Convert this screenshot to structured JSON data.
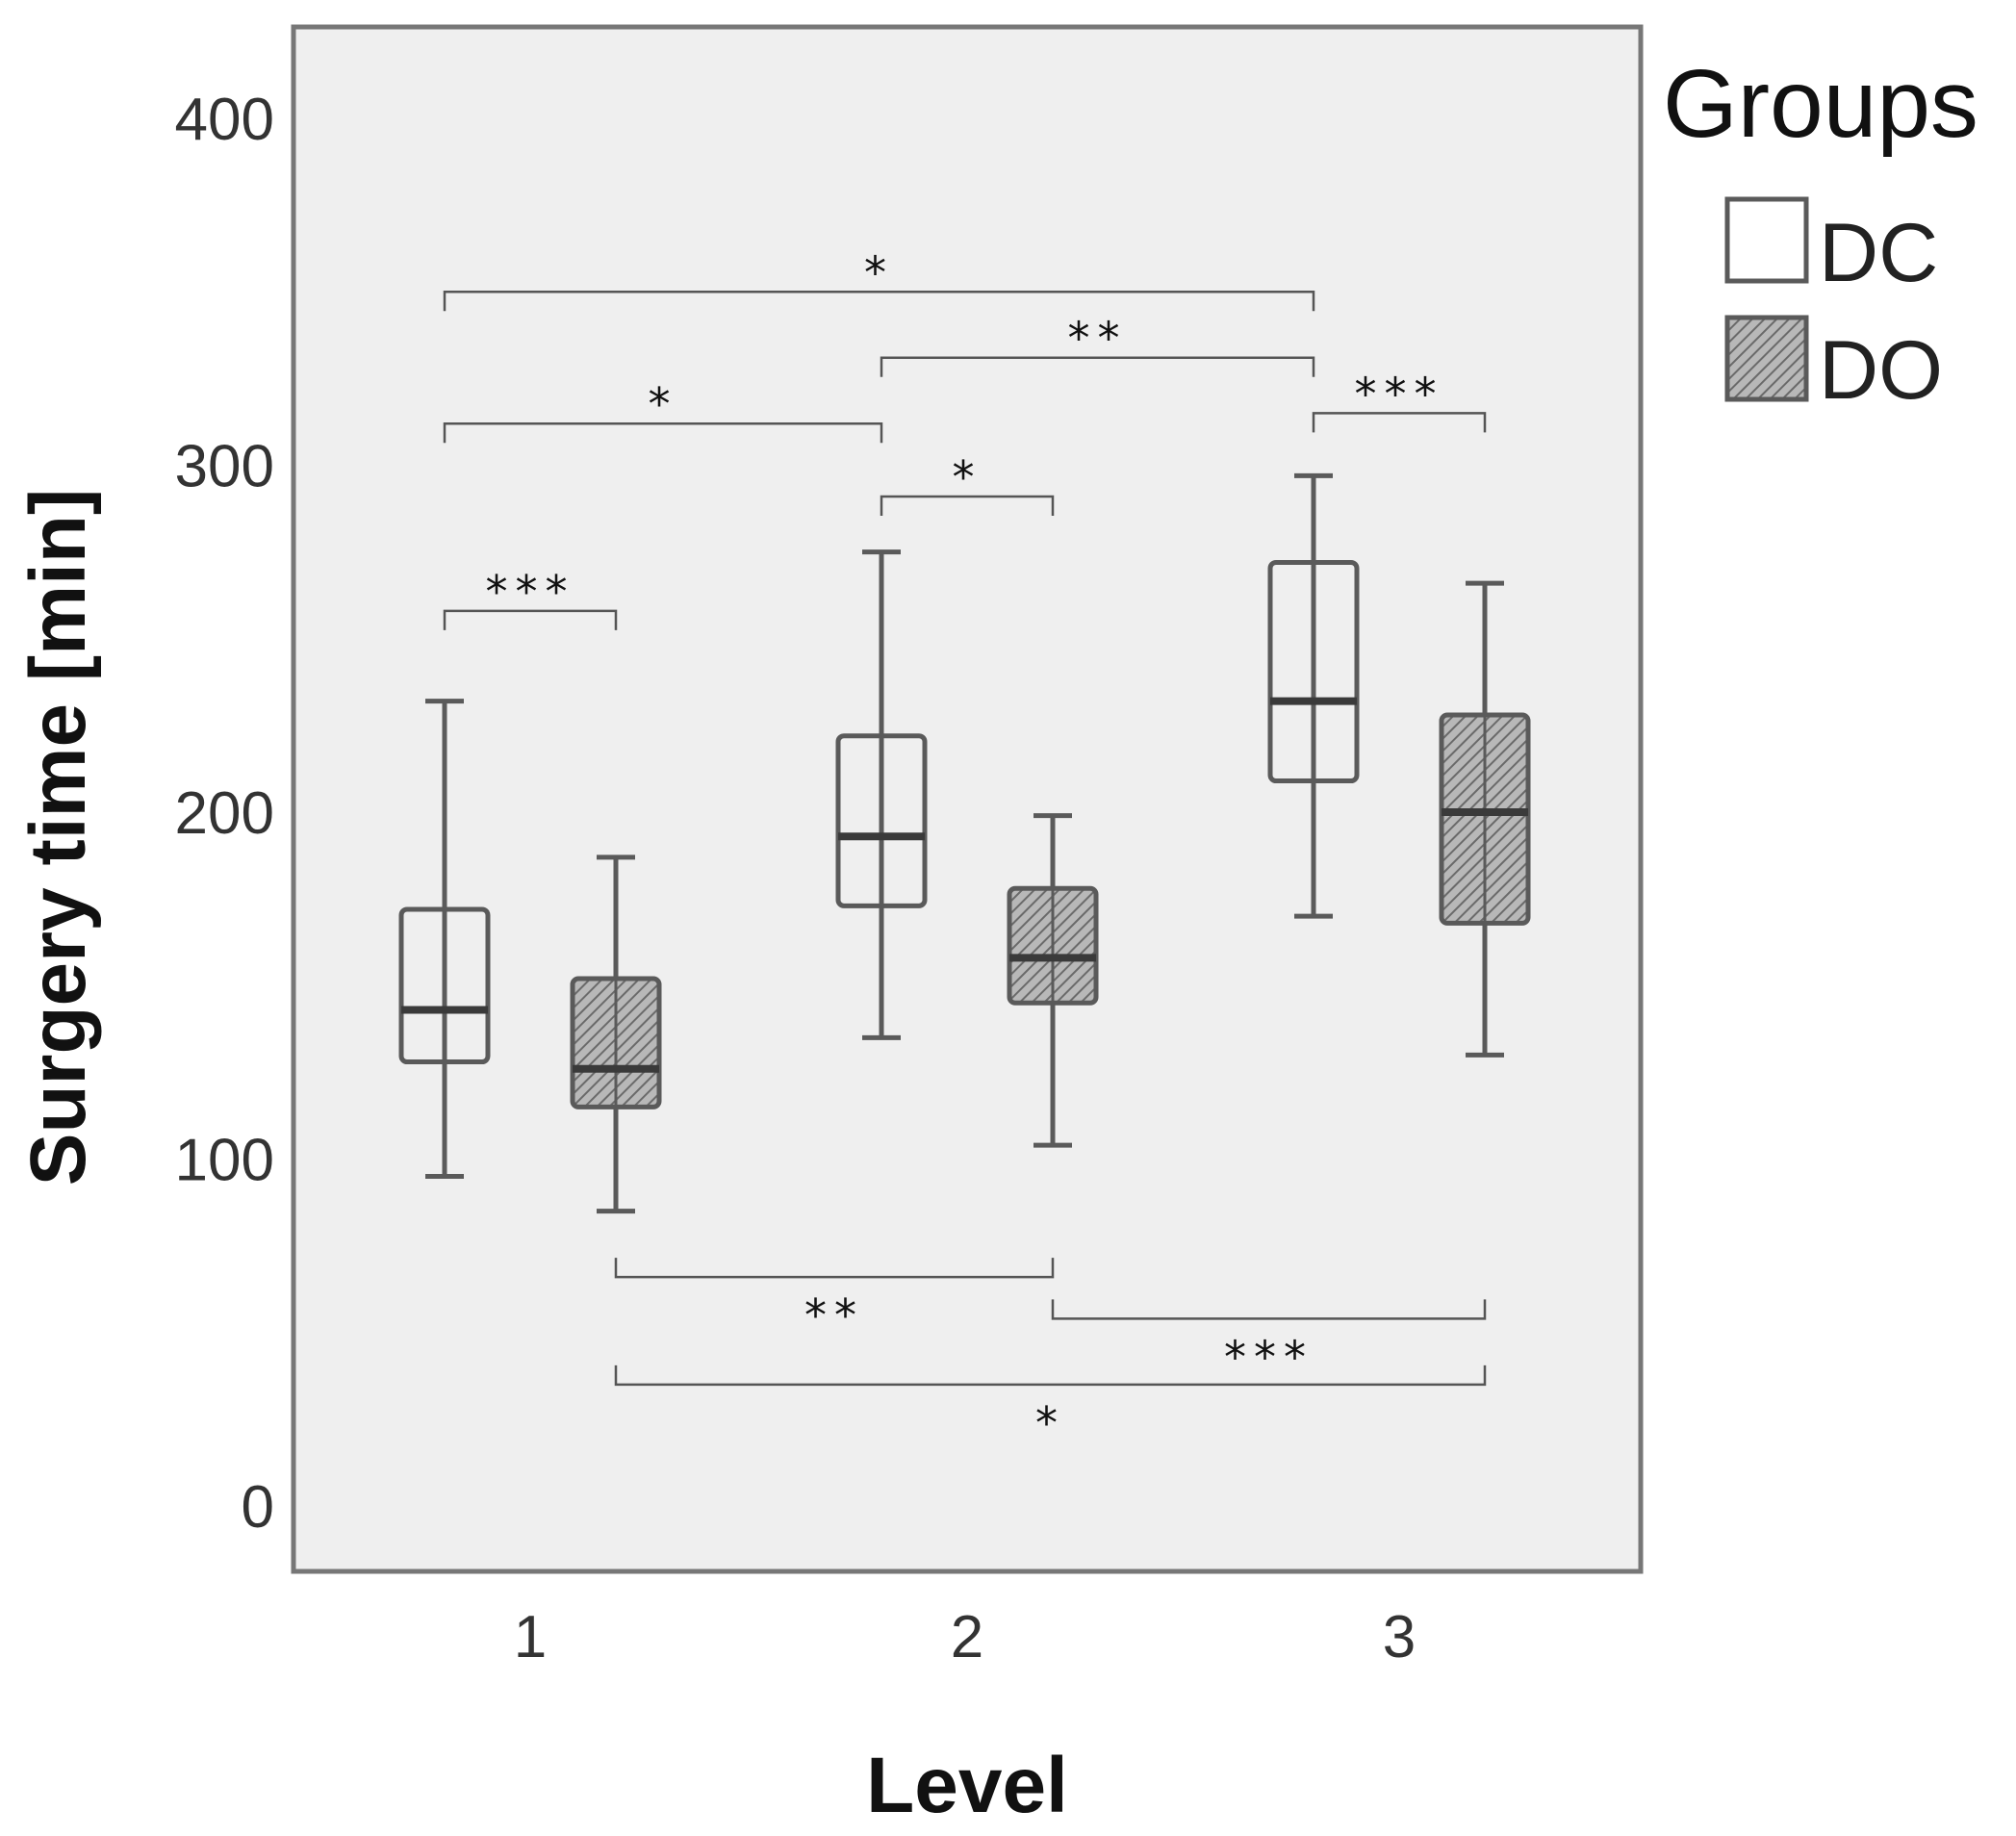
{
  "chart_data": {
    "type": "box",
    "title": "",
    "xlabel": "Level",
    "ylabel": "Surgery time [min]",
    "ylim": [
      0,
      420
    ],
    "yticks": [
      "0",
      "100",
      "200",
      "300",
      "400"
    ],
    "categories": [
      "1",
      "2",
      "3"
    ],
    "legend": {
      "title": "Groups",
      "placement": "right"
    },
    "series": [
      {
        "name": "DC",
        "pattern": "open",
        "boxes": [
          {
            "category": "1",
            "whisker_low": 95,
            "q1": 128,
            "median": 143,
            "q3": 172,
            "whisker_high": 232
          },
          {
            "category": "2",
            "whisker_low": 135,
            "q1": 173,
            "median": 193,
            "q3": 222,
            "whisker_high": 275
          },
          {
            "category": "3",
            "whisker_low": 170,
            "q1": 209,
            "median": 232,
            "q3": 272,
            "whisker_high": 297
          }
        ]
      },
      {
        "name": "DO",
        "pattern": "hatched",
        "boxes": [
          {
            "category": "1",
            "whisker_low": 85,
            "q1": 115,
            "median": 126,
            "q3": 152,
            "whisker_high": 187
          },
          {
            "category": "2",
            "whisker_low": 104,
            "q1": 145,
            "median": 158,
            "q3": 178,
            "whisker_high": 199
          },
          {
            "category": "3",
            "whisker_low": 130,
            "q1": 168,
            "median": 200,
            "q3": 228,
            "whisker_high": 266
          }
        ]
      }
    ],
    "significance": [
      {
        "from": {
          "category": "1",
          "series": "DC"
        },
        "to": {
          "category": "3",
          "series": "DC"
        },
        "label": "*",
        "y": 350,
        "side": "above"
      },
      {
        "from": {
          "category": "2",
          "series": "DC"
        },
        "to": {
          "category": "3",
          "series": "DC"
        },
        "label": "**",
        "y": 331,
        "side": "above"
      },
      {
        "from": {
          "category": "1",
          "series": "DC"
        },
        "to": {
          "category": "2",
          "series": "DC"
        },
        "label": "*",
        "y": 312,
        "side": "above"
      },
      {
        "from": {
          "category": "3",
          "series": "DC"
        },
        "to": {
          "category": "3",
          "series": "DO"
        },
        "label": "***",
        "y": 315,
        "side": "above"
      },
      {
        "from": {
          "category": "2",
          "series": "DC"
        },
        "to": {
          "category": "2",
          "series": "DO"
        },
        "label": "*",
        "y": 291,
        "side": "above"
      },
      {
        "from": {
          "category": "1",
          "series": "DC"
        },
        "to": {
          "category": "1",
          "series": "DO"
        },
        "label": "***",
        "y": 258,
        "side": "above"
      },
      {
        "from": {
          "category": "1",
          "series": "DO"
        },
        "to": {
          "category": "2",
          "series": "DO"
        },
        "label": "**",
        "y": 66,
        "side": "below"
      },
      {
        "from": {
          "category": "2",
          "series": "DO"
        },
        "to": {
          "category": "3",
          "series": "DO"
        },
        "label": "***",
        "y": 54,
        "side": "below"
      },
      {
        "from": {
          "category": "1",
          "series": "DO"
        },
        "to": {
          "category": "3",
          "series": "DO"
        },
        "label": "*",
        "y": 35,
        "side": "below"
      }
    ],
    "colors": {
      "plot_background": "#efefef",
      "box_stroke": "#5a5a5a",
      "hatch_fill": "#9a9a9a",
      "frame": "#777777"
    }
  }
}
